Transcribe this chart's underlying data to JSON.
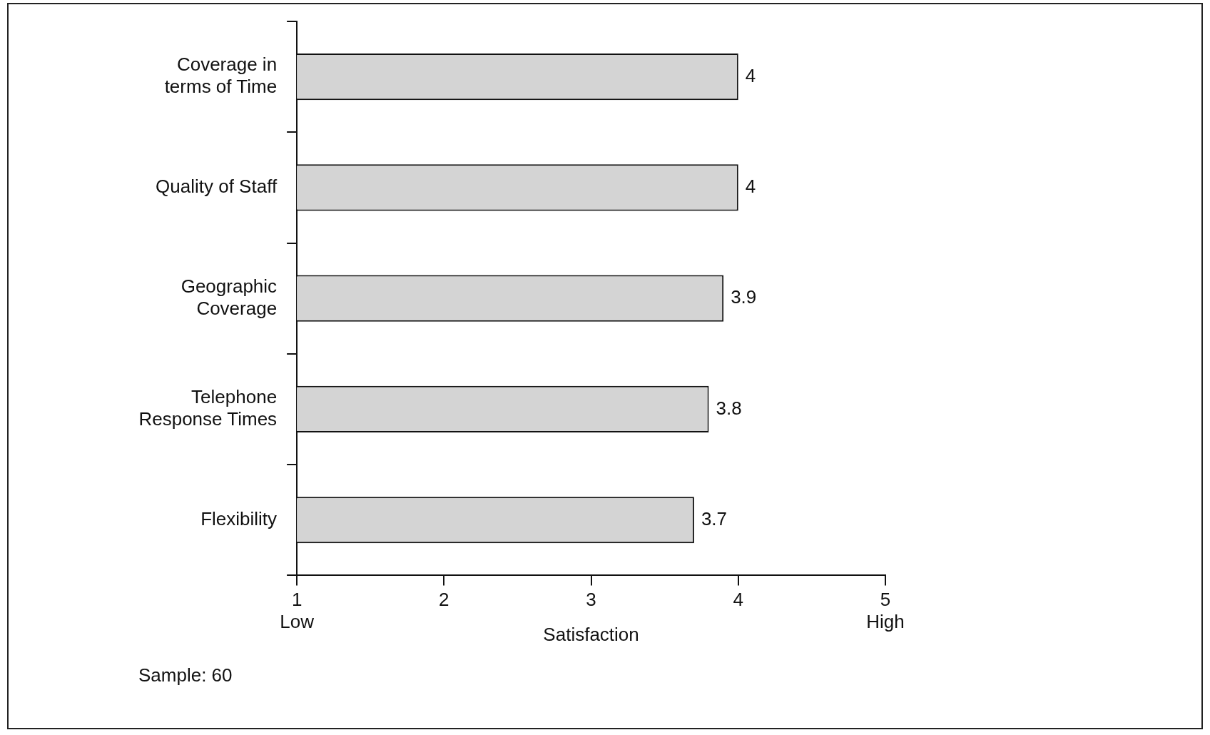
{
  "chart_data": {
    "type": "bar",
    "orientation": "horizontal",
    "xlabel": "Satisfaction",
    "categories": [
      "Coverage in\nterms of Time",
      "Quality of Staff",
      "Geographic\nCoverage",
      "Telephone\nResponse Times",
      "Flexibility"
    ],
    "values": [
      4,
      4,
      3.9,
      3.8,
      3.7
    ],
    "color": "#d4d4d4",
    "data_labels": true,
    "grid": false,
    "legend": false,
    "xlim": [
      1,
      5
    ],
    "xticks": [
      {
        "value": 1,
        "label": "1\nLow"
      },
      2,
      3,
      4,
      {
        "value": 5,
        "label": "5\nHigh"
      }
    ],
    "annotations": [
      "Sample: 60"
    ]
  }
}
